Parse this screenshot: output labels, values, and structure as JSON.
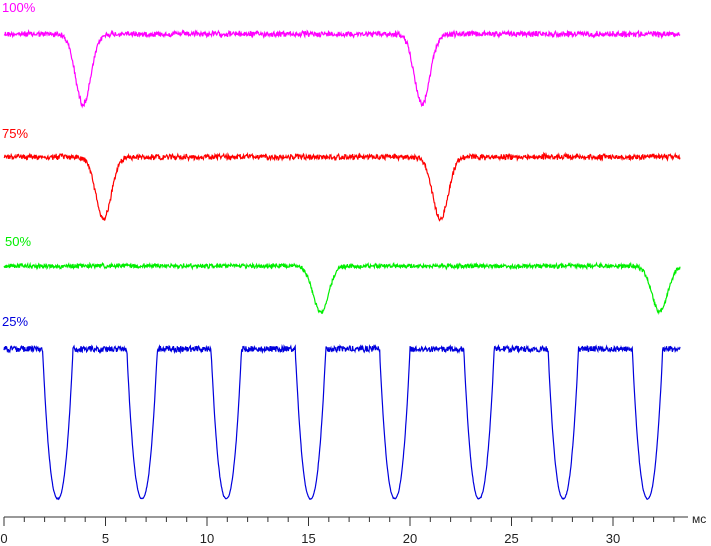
{
  "chart_data": {
    "type": "line",
    "title": "",
    "xlabel": "мс",
    "ylabel": "",
    "xlim": [
      0,
      33.3
    ],
    "x_ticks": [
      "0",
      "5",
      "10",
      "15",
      "20",
      "25",
      "30"
    ],
    "grid": false,
    "series": [
      {
        "name": "100%",
        "color": "#ff00ff",
        "description_values": {
          "baseline_level": 0.0,
          "dips_at_ms": [
            3.9,
            20.6
          ],
          "dip_depth": -2.7
        }
      },
      {
        "name": "75%",
        "color": "#ff0000",
        "description_values": {
          "baseline_level": 0.0,
          "dips_at_ms": [
            4.9,
            21.5
          ],
          "dip_depth": -2.3
        }
      },
      {
        "name": "50%",
        "color": "#00ee00",
        "description_values": {
          "baseline_level": 0.0,
          "dips_at_ms": [
            15.6,
            32.3
          ],
          "dip_depth": -2.1
        }
      },
      {
        "name": "25%",
        "color": "#0000dd",
        "description_values": {
          "high_level": 0.0,
          "period_ms": 4.15,
          "first_minimum_ms": 2.65,
          "minima_ms": [
            2.65,
            6.8,
            10.95,
            15.1,
            19.25,
            23.4,
            27.55,
            31.7
          ],
          "minimum_level": -6.0
        }
      }
    ]
  },
  "colors": {
    "axis": "#333333",
    "background": "#ffffff"
  }
}
